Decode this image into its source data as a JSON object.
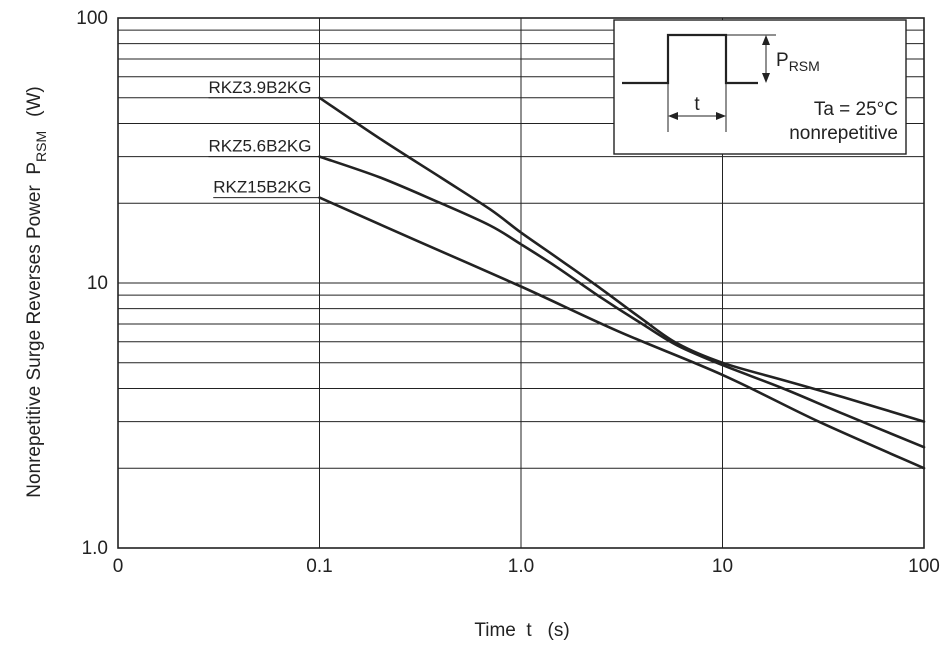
{
  "chart_data": {
    "type": "line",
    "title": "",
    "xlabel": "Time  t   (s)",
    "ylabel": "Nonrepetitive Surge Reverses Power  P",
    "ylabel_sub": "RSM",
    "ylabel_unit": "(W)",
    "x_scale": "log",
    "y_scale": "log",
    "xlim": [
      0.01,
      100
    ],
    "ylim": [
      1,
      100
    ],
    "x_ticks": [
      {
        "value": 0.01,
        "label": "0"
      },
      {
        "value": 0.1,
        "label": "0.1"
      },
      {
        "value": 1,
        "label": "1.0"
      },
      {
        "value": 10,
        "label": "10"
      },
      {
        "value": 100,
        "label": "100"
      }
    ],
    "y_ticks": [
      {
        "value": 1,
        "label": "1.0"
      },
      {
        "value": 10,
        "label": "10"
      },
      {
        "value": 100,
        "label": "100"
      }
    ],
    "grid": true,
    "series": [
      {
        "name": "RKZ3.9B2KG",
        "x": [
          0.1,
          0.2,
          0.4,
          0.7,
          1.0,
          1.5,
          2.5,
          4,
          6,
          10,
          20,
          40,
          100
        ],
        "y": [
          50,
          35,
          25,
          19,
          15.5,
          12.5,
          9.5,
          7.3,
          5.9,
          5.0,
          4.3,
          3.7,
          3.0
        ]
      },
      {
        "name": "RKZ5.6B2KG",
        "x": [
          0.1,
          0.2,
          0.4,
          0.7,
          1.0,
          1.5,
          2.5,
          4,
          6,
          10,
          20,
          40,
          100
        ],
        "y": [
          30,
          25,
          20,
          16.5,
          14,
          11.5,
          8.8,
          7.0,
          5.8,
          4.9,
          4.0,
          3.2,
          2.4
        ]
      },
      {
        "name": "RKZ15B2KG",
        "x": [
          0.1,
          0.3,
          1,
          3,
          10,
          30,
          100
        ],
        "y": [
          21,
          14.5,
          9.7,
          6.6,
          4.5,
          3.0,
          2.0
        ]
      }
    ],
    "inset": {
      "symbol": "P",
      "symbol_sub": "RSM",
      "pulse_label": "t",
      "condition": "Ta = 25°C",
      "note": "nonrepetitive"
    }
  }
}
